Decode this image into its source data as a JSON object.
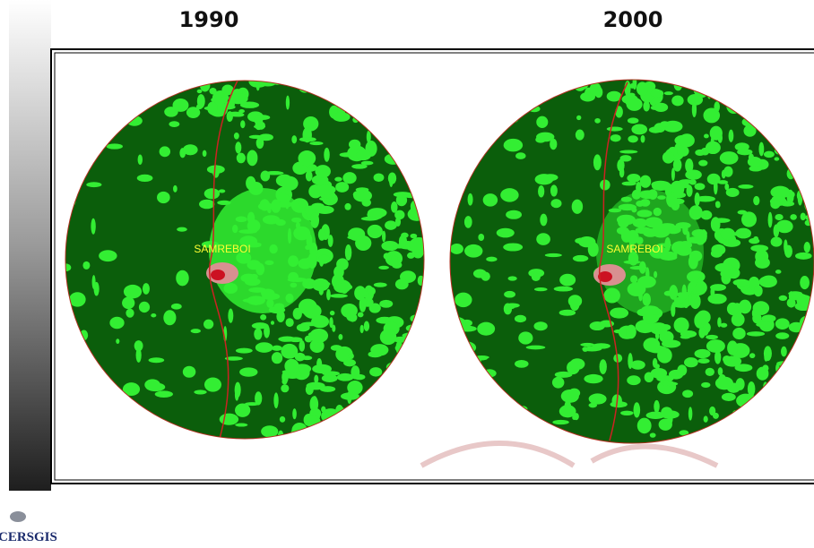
{
  "panels": [
    {
      "year": "1990",
      "place_label": "SAMREBOI"
    },
    {
      "year": "2000",
      "place_label": "SAMREBOI"
    }
  ],
  "logo": {
    "text": "CERSGIS"
  }
}
